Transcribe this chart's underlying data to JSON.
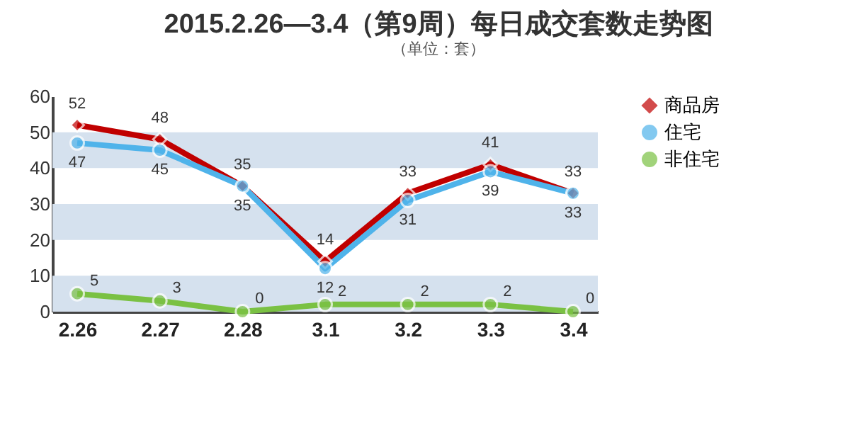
{
  "chart_data": {
    "type": "line",
    "title": "2015.2.26—3.4（第9周）每日成交套数走势图",
    "subtitle": "（单位：套）",
    "categories": [
      "2.26",
      "2.27",
      "2.28",
      "3.1",
      "3.2",
      "3.3",
      "3.4"
    ],
    "series": [
      {
        "name": "商品房",
        "color": "#c00000",
        "marker": "diamond",
        "values": [
          52,
          48,
          35,
          14,
          33,
          41,
          33
        ]
      },
      {
        "name": "住宅",
        "color": "#4fb3ea",
        "marker": "circle",
        "values": [
          47,
          45,
          35,
          12,
          31,
          39,
          33
        ]
      },
      {
        "name": "非住宅",
        "color": "#7ac143",
        "marker": "circle",
        "values": [
          5,
          3,
          0,
          2,
          2,
          2,
          0
        ]
      }
    ],
    "ylim": [
      0,
      60
    ],
    "yticks": [
      0,
      10,
      20,
      30,
      40,
      50,
      60
    ],
    "legend": "right",
    "data_labels": true,
    "bands": [
      {
        "axis": "y",
        "from": 0,
        "to": 10,
        "color": "#d5e1ee"
      },
      {
        "axis": "y",
        "from": 20,
        "to": 30,
        "color": "#d5e1ee"
      },
      {
        "axis": "y",
        "from": 40,
        "to": 50,
        "color": "#d5e1ee"
      }
    ]
  }
}
